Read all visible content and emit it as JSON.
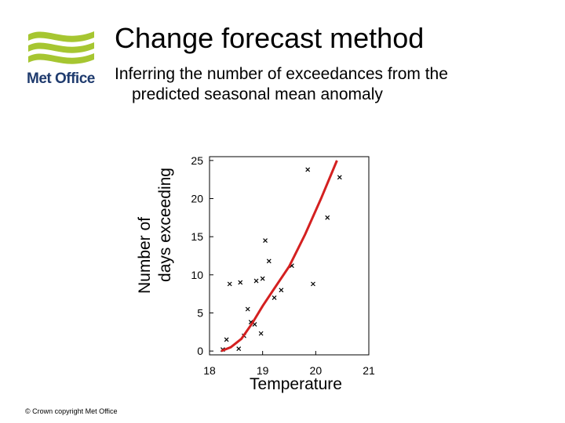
{
  "slide": {
    "title": "Change forecast method",
    "subtitle_line1": "Inferring the number of exceedances from the",
    "subtitle_line2": "predicted seasonal mean anomaly",
    "copyright": "© Crown copyright   Met Office"
  },
  "logo": {
    "text": "Met Office",
    "icon": "met-office-logo",
    "color_green": "#a6c631",
    "color_blue": "#1f3b6e"
  },
  "chart_data": {
    "type": "scatter",
    "title": "",
    "xlabel": "Temperature",
    "ylabel_line1": "Number of",
    "ylabel_line2": "days exceeding",
    "xlim": [
      18,
      21
    ],
    "ylim": [
      -0.5,
      25.5
    ],
    "xticks": [
      18,
      19,
      20,
      21
    ],
    "yticks": [
      0,
      5,
      10,
      15,
      20,
      25
    ],
    "x": [
      18.25,
      18.32,
      18.38,
      18.55,
      18.58,
      18.65,
      18.72,
      18.78,
      18.85,
      18.88,
      18.97,
      19.0,
      19.05,
      19.12,
      19.22,
      19.35,
      19.55,
      19.85,
      19.95,
      20.22,
      20.45
    ],
    "y": [
      0.2,
      1.5,
      8.8,
      0.3,
      9.0,
      2.0,
      5.5,
      3.8,
      3.5,
      9.2,
      2.3,
      9.5,
      14.5,
      11.8,
      7.0,
      8.0,
      11.2,
      23.8,
      8.8,
      17.5,
      22.8
    ],
    "fit_line": {
      "x": [
        18.22,
        18.4,
        18.6,
        18.8,
        19.0,
        19.2,
        19.5,
        19.8,
        20.1,
        20.4
      ],
      "y": [
        0.0,
        0.5,
        1.6,
        3.6,
        5.9,
        8.0,
        11.1,
        15.3,
        20.0,
        25.0
      ],
      "color": "#d42020"
    },
    "marker": "x",
    "marker_color": "#000000"
  }
}
